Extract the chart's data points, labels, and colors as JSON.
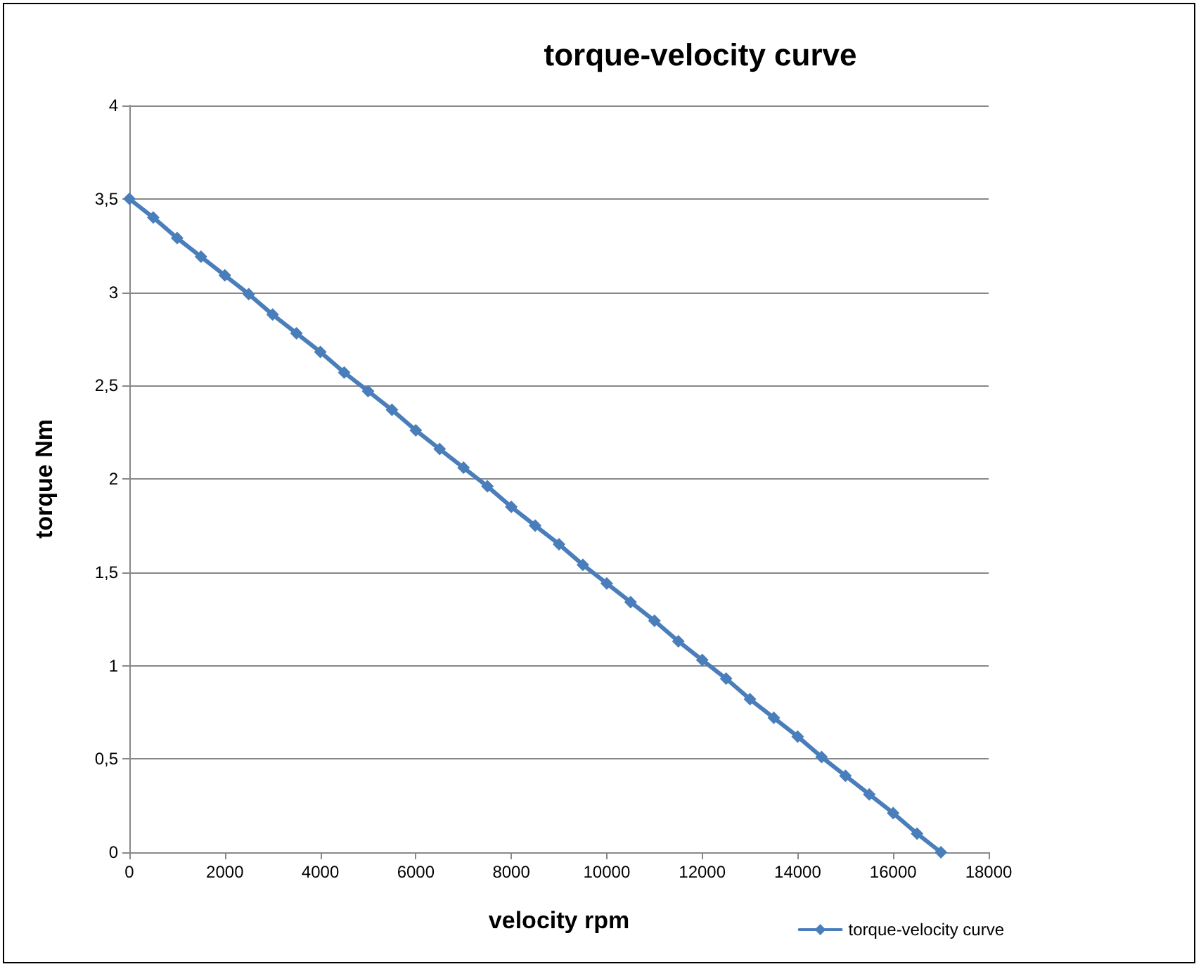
{
  "chart_data": {
    "type": "line",
    "title": "torque-velocity curve",
    "xlabel": "velocity rpm",
    "ylabel": "torque Nm",
    "x": [
      0,
      500,
      1000,
      1500,
      2000,
      2500,
      3000,
      3500,
      4000,
      4500,
      5000,
      5500,
      6000,
      6500,
      7000,
      7500,
      8000,
      8500,
      9000,
      9500,
      10000,
      10500,
      11000,
      11500,
      12000,
      12500,
      13000,
      13500,
      14000,
      14500,
      15000,
      15500,
      16000,
      16500,
      17000
    ],
    "series": [
      {
        "name": "torque-velocity curve",
        "color": "#4a7ebb",
        "values": [
          3.5,
          3.4,
          3.29,
          3.19,
          3.09,
          2.99,
          2.88,
          2.78,
          2.68,
          2.57,
          2.47,
          2.37,
          2.26,
          2.16,
          2.06,
          1.96,
          1.85,
          1.75,
          1.65,
          1.54,
          1.44,
          1.34,
          1.24,
          1.13,
          1.03,
          0.93,
          0.82,
          0.72,
          0.62,
          0.51,
          0.41,
          0.31,
          0.21,
          0.1,
          0
        ]
      }
    ],
    "xlim": [
      0,
      18000
    ],
    "xticks": [
      0,
      2000,
      4000,
      6000,
      8000,
      10000,
      12000,
      14000,
      16000,
      18000
    ],
    "ylim": [
      0,
      4
    ],
    "yticks": [
      0,
      {
        "value": 0.5,
        "label": "0,5"
      },
      1,
      {
        "value": 1.5,
        "label": "1,5"
      },
      2,
      {
        "value": 2.5,
        "label": "2,5"
      },
      3,
      {
        "value": 3.5,
        "label": "3,5"
      },
      4
    ],
    "grid": "y",
    "legend": "bottom right",
    "marker": "diamond",
    "line_style": "solid"
  }
}
